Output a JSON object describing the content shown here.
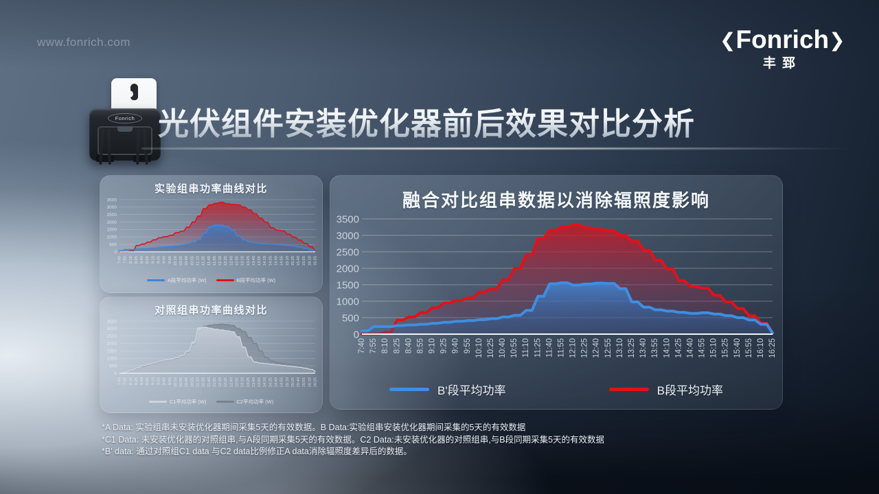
{
  "page": {
    "watermark": "www.fonrich.com",
    "title": "光伏组件安装优化器前后效果对比分析",
    "device_label": "Fonrich",
    "logo": {
      "left_bracket": "❮",
      "text": "Fonrich",
      "right_bracket": "❯",
      "subtext": "丰郅"
    },
    "footnotes": [
      "*A Data: 实验组串未安装优化器期间采集5天的有效数据。B Data:实验组串安装优化器期间采集的5天的有效数据",
      "*C1 Data: 未安装优化器的对照组串,与A段同期采集5天的有效数据。C2 Data:未安装优化器的对照组串,与B段同期采集5天的有效数据",
      "*B' data: 通过对照组C1 data 与C2 data比例修正A data消除辐照度差异后的数据。"
    ]
  },
  "colors": {
    "accent_red": "#e0121b",
    "accent_blue": "#3f86d8",
    "gray_light": "#ccd4de",
    "gray_dark": "#79828f"
  },
  "chart_data": [
    {
      "id": "exp",
      "type": "area",
      "title": "实验组串功率曲线对比",
      "ylim": [
        0,
        3500
      ],
      "yticks": [
        0,
        500,
        1000,
        1500,
        2000,
        2500,
        3000,
        3500
      ],
      "grid": true,
      "legend_position": "bottom",
      "categories": [
        "7:40",
        "7:55",
        "8:10",
        "8:25",
        "8:40",
        "8:55",
        "9:10",
        "9:25",
        "9:40",
        "9:55",
        "10:10",
        "10:25",
        "10:40",
        "10:55",
        "11:10",
        "11:25",
        "11:40",
        "11:55",
        "12:10",
        "12:25",
        "12:40",
        "12:55",
        "13:10",
        "13:25",
        "13:40",
        "13:55",
        "14:10",
        "14:25",
        "14:40",
        "14:55",
        "15:10",
        "15:25",
        "15:40",
        "15:55",
        "16:10",
        "16:25"
      ],
      "series": [
        {
          "name": "A段平均功率  (W)",
          "line_color": "#3f86d8",
          "fill_top": "rgba(62,130,205,0.85)",
          "fill_bottom": "rgba(45,85,140,0.30)",
          "values": [
            80,
            150,
            150,
            180,
            200,
            230,
            260,
            300,
            330,
            360,
            400,
            450,
            520,
            620,
            820,
            1250,
            1680,
            1800,
            1790,
            1700,
            1450,
            1050,
            800,
            650,
            600,
            560,
            520,
            500,
            480,
            450,
            420,
            380,
            320,
            240,
            140,
            30
          ]
        },
        {
          "name": "B段平均功率  (W)",
          "line_color": "#e0121b",
          "fill_top": "rgba(205,25,35,0.80)",
          "fill_bottom": "rgba(110,60,100,0.12)",
          "values": [
            0,
            0,
            60,
            430,
            520,
            650,
            800,
            950,
            1020,
            1100,
            1280,
            1380,
            1650,
            2000,
            2400,
            2900,
            3150,
            3250,
            3320,
            3230,
            3180,
            3150,
            3000,
            2820,
            2550,
            2250,
            1980,
            1620,
            1450,
            1400,
            1180,
            980,
            780,
            560,
            330,
            40
          ]
        }
      ]
    },
    {
      "id": "ctrl",
      "type": "area",
      "title": "对照组串功率曲线对比",
      "ylim": [
        0,
        3500
      ],
      "yticks": [
        0,
        500,
        1000,
        1500,
        2000,
        2500,
        3000,
        3500
      ],
      "grid": true,
      "legend_position": "bottom",
      "categories": [
        "7:40",
        "7:55",
        "8:10",
        "8:25",
        "8:40",
        "8:55",
        "9:10",
        "9:25",
        "9:40",
        "9:55",
        "10:10",
        "10:25",
        "10:40",
        "10:55",
        "11:10",
        "11:25",
        "11:40",
        "11:55",
        "12:10",
        "12:25",
        "12:40",
        "12:55",
        "13:10",
        "13:25",
        "13:40",
        "13:55",
        "14:10",
        "14:25",
        "14:40",
        "14:55",
        "15:10",
        "15:25",
        "15:40",
        "15:55",
        "16:10",
        "16:25"
      ],
      "series": [
        {
          "name": "C1平均功率  (W)",
          "line_color": "#ccd4de",
          "fill_top": "rgba(212,220,230,0.75)",
          "fill_bottom": "rgba(205,214,224,0.22)",
          "values": [
            0,
            80,
            200,
            350,
            500,
            600,
            700,
            800,
            900,
            950,
            1050,
            1200,
            1500,
            2100,
            3050,
            3100,
            3020,
            2950,
            2900,
            2850,
            2780,
            2450,
            1750,
            1100,
            750,
            680,
            640,
            600,
            560,
            520,
            480,
            440,
            400,
            340,
            260,
            120
          ]
        },
        {
          "name": "C2平均功率  (W)",
          "line_color": "#79828f",
          "fill_top": "rgba(122,130,142,0.70)",
          "fill_bottom": "rgba(122,130,142,0.14)",
          "values": [
            0,
            60,
            180,
            320,
            460,
            560,
            660,
            760,
            860,
            920,
            1000,
            1150,
            1400,
            1950,
            2850,
            3150,
            3220,
            3260,
            3300,
            3260,
            3200,
            3000,
            2800,
            2400,
            2000,
            1500,
            1050,
            820,
            720,
            660,
            610,
            560,
            510,
            420,
            310,
            150
          ]
        }
      ]
    },
    {
      "id": "main",
      "type": "area",
      "title": "融合对比组串数据以消除辐照度影响",
      "ylim": [
        0,
        3500
      ],
      "yticks": [
        0,
        500,
        1000,
        1500,
        2000,
        2500,
        3000,
        3500
      ],
      "grid": true,
      "legend_position": "bottom",
      "categories": [
        "7:40",
        "7:55",
        "8:10",
        "8:25",
        "8:40",
        "8:55",
        "9:10",
        "9:25",
        "9:40",
        "9:55",
        "10:10",
        "10:25",
        "10:40",
        "10:55",
        "11:10",
        "11:25",
        "11:40",
        "11:55",
        "12:10",
        "12:25",
        "12:40",
        "12:55",
        "13:10",
        "13:25",
        "13:40",
        "13:55",
        "14:10",
        "14:25",
        "14:40",
        "14:55",
        "15:10",
        "15:25",
        "15:40",
        "15:55",
        "16:10",
        "16:25"
      ],
      "series": [
        {
          "name": "B'段平均功率",
          "line_color": "#3f8ee0",
          "fill_top": "rgba(64,132,208,0.90)",
          "fill_bottom": "rgba(45,85,142,0.32)",
          "values": [
            100,
            230,
            230,
            260,
            280,
            300,
            330,
            360,
            390,
            410,
            440,
            470,
            520,
            570,
            720,
            1150,
            1530,
            1560,
            1490,
            1520,
            1550,
            1540,
            1380,
            980,
            820,
            740,
            700,
            660,
            630,
            650,
            610,
            560,
            500,
            430,
            300,
            30
          ]
        },
        {
          "name": "B段平均功率",
          "line_color": "#e0121b",
          "fill_top": "rgba(203,22,32,0.85)",
          "fill_bottom": "rgba(105,60,105,0.14)",
          "values": [
            0,
            0,
            60,
            430,
            520,
            650,
            800,
            950,
            1020,
            1100,
            1280,
            1380,
            1650,
            2000,
            2400,
            2900,
            3150,
            3250,
            3320,
            3230,
            3180,
            3150,
            3000,
            2820,
            2550,
            2250,
            1980,
            1620,
            1450,
            1400,
            1180,
            980,
            780,
            560,
            330,
            40
          ]
        }
      ]
    }
  ]
}
